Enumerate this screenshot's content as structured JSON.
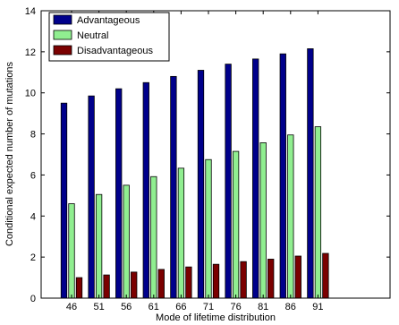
{
  "chart_data": {
    "type": "bar",
    "title": "",
    "xlabel": "Mode of lifetime distribution",
    "ylabel": "Conditional expected number of mutations",
    "categories": [
      "46",
      "51",
      "56",
      "61",
      "66",
      "71",
      "76",
      "81",
      "86",
      "91"
    ],
    "ylim": [
      0,
      14
    ],
    "yticks": [
      0,
      2,
      4,
      6,
      8,
      10,
      12,
      14
    ],
    "grid": false,
    "legend_position": "top-left",
    "series": [
      {
        "name": "Advantageous",
        "color": "#00008b",
        "values": [
          9.5,
          9.85,
          10.2,
          10.5,
          10.8,
          11.1,
          11.4,
          11.65,
          11.9,
          12.15
        ]
      },
      {
        "name": "Neutral",
        "color": "#90ee90",
        "values": [
          4.6,
          5.05,
          5.5,
          5.92,
          6.33,
          6.75,
          7.15,
          7.57,
          7.95,
          8.35
        ]
      },
      {
        "name": "Disadvantageous",
        "color": "#7b0000",
        "values": [
          1.0,
          1.13,
          1.27,
          1.4,
          1.52,
          1.65,
          1.78,
          1.9,
          2.05,
          2.18
        ]
      }
    ]
  }
}
